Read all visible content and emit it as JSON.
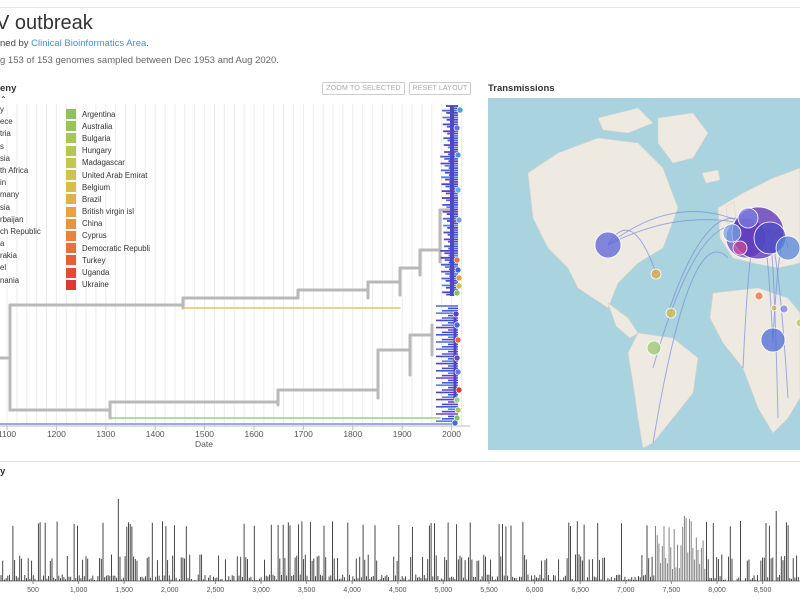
{
  "header": {
    "title": "V outbreak",
    "byline_prefix": "ned by ",
    "byline_link": "Clinical Bioinformatics Area",
    "byline_suffix": ".",
    "summary": "g 153 of 153 genomes sampled between Dec 1953 and Aug 2020."
  },
  "phylogeny": {
    "title": "eny",
    "zoom_button": "ZOOM TO SELECTED",
    "reset_button": "RESET LAYOUT",
    "legend_left": [
      "y",
      "ece",
      "tria",
      "s",
      "sia",
      "th Africa",
      "in",
      "many",
      "sia",
      "rbaijan",
      "ch Republic",
      "a",
      "rakia",
      "el",
      "nania"
    ],
    "legend_right": [
      {
        "label": "Argentina",
        "color": "#8cc15e"
      },
      {
        "label": "Australia",
        "color": "#98c45a"
      },
      {
        "label": "Bulgaria",
        "color": "#a6c656"
      },
      {
        "label": "Hungary",
        "color": "#b5c753"
      },
      {
        "label": "Madagascar",
        "color": "#c3c650"
      },
      {
        "label": "United Arab Emirat",
        "color": "#d0c24d"
      },
      {
        "label": "Belgium",
        "color": "#dbbb4a"
      },
      {
        "label": "Brazil",
        "color": "#e2b047"
      },
      {
        "label": "British virgin isl",
        "color": "#e6a244"
      },
      {
        "label": "China",
        "color": "#e79440"
      },
      {
        "label": "Cyprus",
        "color": "#e7833d"
      },
      {
        "label": "Democratic Republi",
        "color": "#e6723a"
      },
      {
        "label": "Turkey",
        "color": "#e45f37"
      },
      {
        "label": "Uganda",
        "color": "#e14c34"
      },
      {
        "label": "Ukraine",
        "color": "#dd3831"
      }
    ],
    "x_axis": {
      "label": "Date",
      "ticks": [
        "1100",
        "1200",
        "1300",
        "1400",
        "1500",
        "1600",
        "1700",
        "1800",
        "1900",
        "2000"
      ]
    }
  },
  "transmissions": {
    "title": "Transmissions",
    "map_colors": {
      "water": "#a9d3df",
      "land": "#eeeae2",
      "arc": "#7b8fd9"
    }
  },
  "entropy": {
    "title": "y",
    "x_ticks": [
      "500",
      "1,000",
      "1,500",
      "2,000",
      "2,500",
      "3,000",
      "3,500",
      "4,000",
      "4,500",
      "5,000",
      "5,500",
      "6,000",
      "6,500",
      "7,000",
      "7,500",
      "8,000",
      "8,500"
    ]
  }
}
